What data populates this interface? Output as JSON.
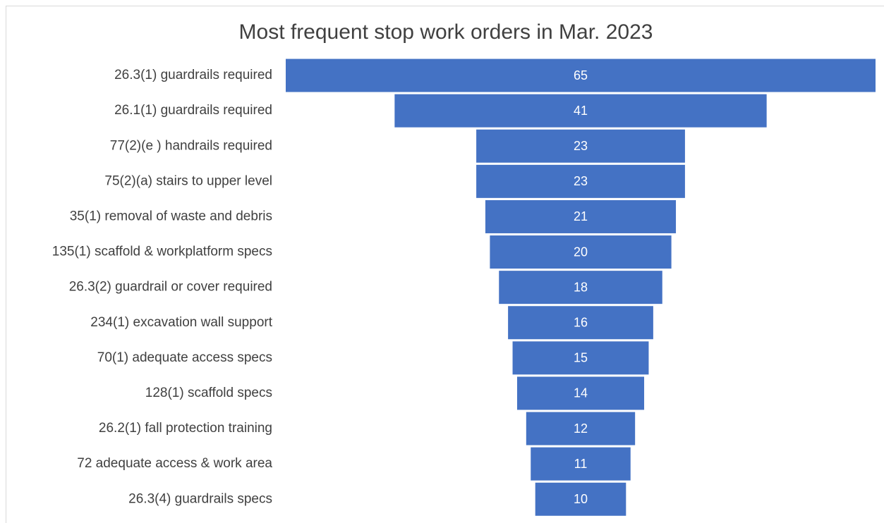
{
  "chart_data": {
    "type": "funnel",
    "title": "Most frequent stop work orders in Mar. 2023",
    "categories": [
      "26.3(1) guardrails required",
      "26.1(1) guardrails required",
      "77(2)(e ) handrails required",
      "75(2)(a) stairs to upper level",
      "35(1) removal of waste and debris",
      "135(1) scaffold & workplatform specs",
      "26.3(2) guardrail or cover required",
      "234(1) excavation wall support",
      "70(1) adequate access specs",
      "128(1) scaffold specs",
      "26.2(1) fall protection training",
      "72  adequate access & work area",
      "26.3(4) guardrails specs"
    ],
    "values": [
      65,
      41,
      23,
      23,
      21,
      20,
      18,
      16,
      15,
      14,
      12,
      11,
      10
    ],
    "color": "#4472c4"
  }
}
